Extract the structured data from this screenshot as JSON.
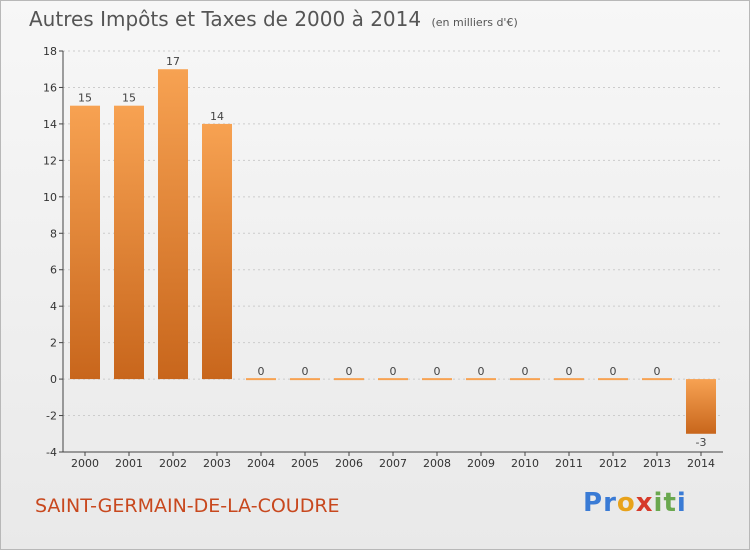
{
  "title": "Autres Impôts et Taxes de 2000 à 2014",
  "unit_note": "(en milliers d'€)",
  "commune": "SAINT-GERMAIN-DE-LA-COUDRE",
  "logo": {
    "text": "Proxiti",
    "letters": [
      {
        "ch": "P",
        "color": "#3a7bd5"
      },
      {
        "ch": "r",
        "color": "#3a7bd5"
      },
      {
        "ch": "o",
        "color": "#e8a21a"
      },
      {
        "ch": "x",
        "color": "#d63a2a"
      },
      {
        "ch": "i",
        "color": "#6aa84f"
      },
      {
        "ch": "t",
        "color": "#6aa84f"
      },
      {
        "ch": "i",
        "color": "#3a7bd5"
      }
    ]
  },
  "colors": {
    "bar_light": "#f7a252",
    "bar_dark": "#c8661c",
    "axis": "#444444",
    "grid": "#cccccc"
  },
  "chart_data": {
    "type": "bar",
    "categories": [
      "2000",
      "2001",
      "2002",
      "2003",
      "2004",
      "2005",
      "2006",
      "2007",
      "2008",
      "2009",
      "2010",
      "2011",
      "2012",
      "2013",
      "2014"
    ],
    "values": [
      15,
      15,
      17,
      14,
      0,
      0,
      0,
      0,
      0,
      0,
      0,
      0,
      0,
      0,
      -3
    ],
    "value_labels": [
      "15",
      "15",
      "17",
      "14",
      "0",
      "0",
      "0",
      "0",
      "0",
      "0",
      "0",
      "0",
      "0",
      "0",
      "-3"
    ],
    "ylim": [
      -4,
      18
    ],
    "yticks": [
      -4,
      -2,
      0,
      2,
      4,
      6,
      8,
      10,
      12,
      14,
      16,
      18
    ],
    "ytick_labels": [
      "-4",
      "-2",
      "0",
      "2",
      "4",
      "6",
      "8",
      "10",
      "12",
      "14",
      "16",
      "18"
    ],
    "grid": true
  }
}
